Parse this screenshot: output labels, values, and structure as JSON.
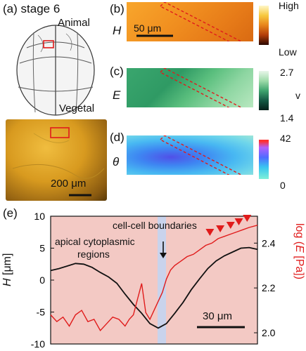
{
  "panel_a": {
    "label": "(a)",
    "stage": "stage 6",
    "animal": "Animal",
    "vegetal": "Vegetal",
    "scalebar": "200 μm"
  },
  "panel_b": {
    "label": "(b)",
    "quantity": "H",
    "scalebar": "50 μm",
    "cbar_high": "High",
    "cbar_low": "Low"
  },
  "panel_c": {
    "label": "(c)",
    "quantity": "E",
    "cbar_max": "2.7",
    "cbar_min": "1.4",
    "cbar_unit": "v"
  },
  "panel_d": {
    "label": "(d)",
    "quantity": "θ",
    "cbar_max": "42",
    "cbar_min": "0"
  },
  "panel_e": {
    "label": "(e)",
    "annotation_boundaries": "cell-cell boundaries",
    "annotation_apical_1": "apical cytoplasmic",
    "annotation_apical_2": "regions",
    "scalebar": "30 μm",
    "ylabel_left_sym": "H",
    "ylabel_left_unit": "[μm]",
    "ylabel_right_prefix": "log (",
    "ylabel_right_sym": "E",
    "ylabel_right_suffix": " [Pa])",
    "left_ticks": [
      "10",
      "5",
      "0",
      "-5",
      "-10"
    ],
    "right_ticks": [
      "2.4",
      "2.2",
      "2.0"
    ]
  },
  "colors": {
    "accent_red": "#e01b1b",
    "band_blue": "#c9d3ec",
    "bg_pink": "#f3c9c4"
  },
  "chart_data": {
    "type": "line",
    "series": [
      {
        "axis": "left",
        "x": [
          0,
          4,
          8,
          12,
          16,
          20,
          24,
          28,
          32,
          36,
          40,
          44,
          48,
          52,
          56,
          60,
          64,
          68,
          72,
          76,
          80,
          84,
          88,
          92,
          96,
          100
        ],
        "values": [
          1.5,
          1.8,
          2.2,
          2.6,
          2.5,
          2.0,
          1.2,
          0.5,
          -0.5,
          -2.2,
          -3.8,
          -5.2,
          -6.8,
          -7.5,
          -6.8,
          -5.2,
          -3.5,
          -1.5,
          0.2,
          1.8,
          3.0,
          3.8,
          4.4,
          5.0,
          5.1,
          4.8
        ]
      },
      {
        "axis": "right",
        "x": [
          0,
          3,
          6,
          9,
          12,
          15,
          18,
          21,
          24,
          27,
          30,
          33,
          36,
          38,
          40,
          42,
          44,
          46,
          48,
          50,
          52,
          54,
          56,
          58,
          60,
          63,
          66,
          69,
          72,
          75,
          78,
          81,
          84,
          87,
          90,
          93,
          96,
          100
        ],
        "values": [
          2.08,
          2.05,
          2.07,
          2.03,
          2.08,
          2.1,
          2.05,
          2.06,
          2.01,
          2.04,
          2.07,
          2.06,
          2.03,
          2.06,
          2.08,
          2.15,
          2.22,
          2.09,
          2.06,
          2.1,
          2.14,
          2.18,
          2.24,
          2.28,
          2.3,
          2.32,
          2.34,
          2.35,
          2.37,
          2.39,
          2.4,
          2.42,
          2.43,
          2.44,
          2.45,
          2.46,
          2.47,
          2.48
        ]
      }
    ],
    "ylim_left": [
      -10,
      10
    ],
    "ylim_right": [
      1.95,
      2.52
    ],
    "markers": [
      "triangle-down",
      "triangle-down",
      "triangle-down",
      "triangle-down",
      "triangle-down"
    ],
    "grid": false
  }
}
